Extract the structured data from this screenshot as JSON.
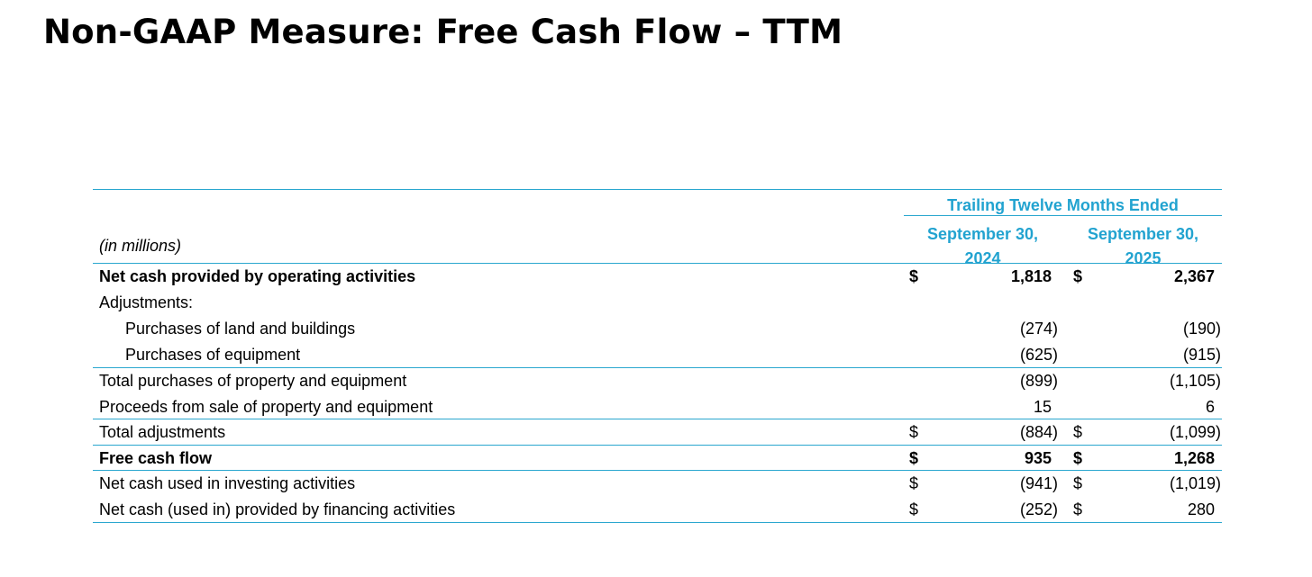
{
  "page": {
    "title": "Non-GAAP Measure: Free Cash Flow – TTM"
  },
  "table": {
    "units_label": "(in millions)",
    "period_header": "Trailing Twelve Months Ended",
    "columns": [
      {
        "line1": "September 30,",
        "line2": "2024"
      },
      {
        "line1": "September 30,",
        "line2": "2025"
      }
    ],
    "rows": [
      {
        "label": "Net cash provided by operating activities",
        "d1": "$",
        "v1": "1,818",
        "d2": "$",
        "v2": "2,367"
      },
      {
        "label": "Adjustments:",
        "d1": "",
        "v1": "",
        "d2": "",
        "v2": ""
      },
      {
        "label": "Purchases of land and buildings",
        "d1": "",
        "v1": "(274)",
        "d2": "",
        "v2": "(190)"
      },
      {
        "label": "Purchases of equipment",
        "d1": "",
        "v1": "(625)",
        "d2": "",
        "v2": "(915)"
      },
      {
        "label": "Total purchases of property and equipment",
        "d1": "",
        "v1": "(899)",
        "d2": "",
        "v2": "(1,105)"
      },
      {
        "label": "Proceeds from sale of property and equipment",
        "d1": "",
        "v1": "15",
        "d2": "",
        "v2": "6"
      },
      {
        "label": "Total adjustments",
        "d1": "$",
        "v1": "(884)",
        "d2": "$",
        "v2": "(1,099)"
      },
      {
        "label": "Free cash flow",
        "d1": "$",
        "v1": "935",
        "d2": "$",
        "v2": "1,268"
      },
      {
        "label": "Net cash used in investing activities",
        "d1": "$",
        "v1": "(941)",
        "d2": "$",
        "v2": "(1,019)"
      },
      {
        "label": "Net cash (used in) provided by financing activities",
        "d1": "$",
        "v1": "(252)",
        "d2": "$",
        "v2": "280"
      }
    ]
  },
  "colors": {
    "accent": "#22a3d0",
    "rule": "#2aa7cf",
    "text": "#000000"
  }
}
